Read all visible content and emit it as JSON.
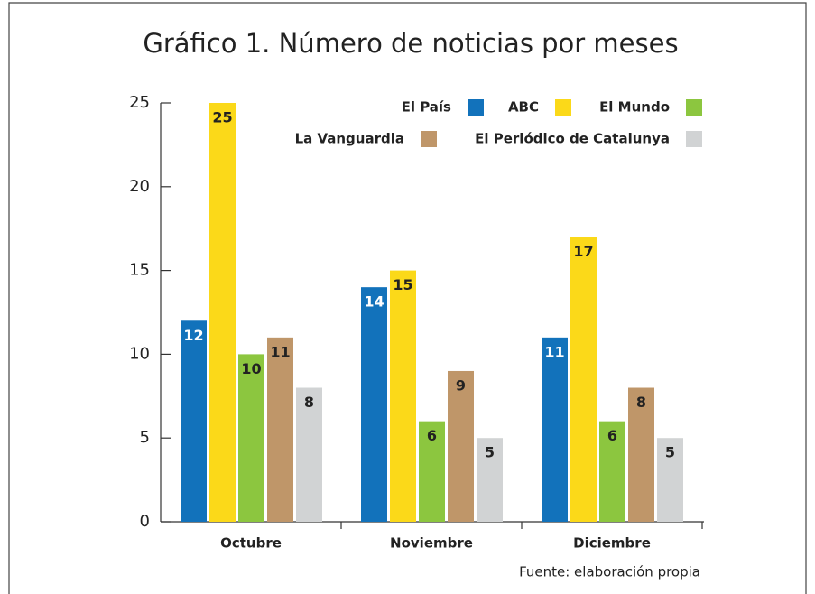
{
  "chart_data": {
    "type": "bar",
    "title": "Gráfico 1. Número de noticias por meses",
    "source": "Fuente: elaboración propia",
    "categories": [
      "Octubre",
      "Noviembre",
      "Diciembre"
    ],
    "series": [
      {
        "name": "El País",
        "color": "#1272bb",
        "label_color": "#ffffff",
        "values": [
          12,
          14,
          11
        ]
      },
      {
        "name": "ABC",
        "color": "#fbd919",
        "label_color": "#222222",
        "values": [
          25,
          15,
          17
        ]
      },
      {
        "name": "El Mundo",
        "color": "#8cc63f",
        "label_color": "#222222",
        "values": [
          10,
          6,
          6
        ]
      },
      {
        "name": "La Vanguardia",
        "color": "#bf9669",
        "label_color": "#222222",
        "values": [
          11,
          9,
          8
        ]
      },
      {
        "name": "El Periódico de Catalunya",
        "color": "#d1d3d4",
        "label_color": "#222222",
        "values": [
          8,
          5,
          5
        ]
      }
    ],
    "ylim": [
      0,
      25
    ],
    "yticks": [
      0,
      5,
      10,
      15,
      20,
      25
    ],
    "legend": "top-right"
  }
}
